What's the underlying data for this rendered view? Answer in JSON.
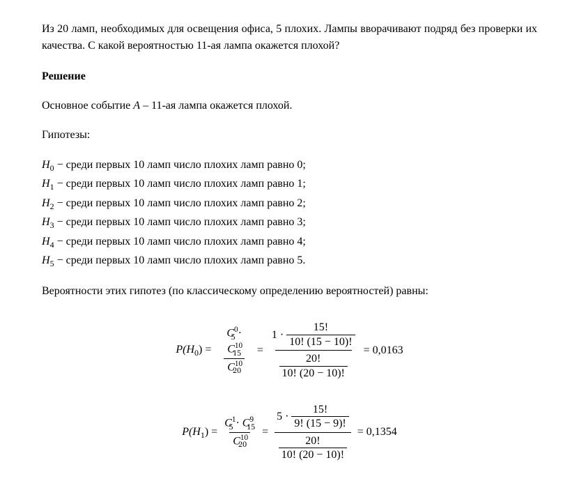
{
  "text_color": "#000000",
  "background_color": "#ffffff",
  "font_family": "Times New Roman",
  "problem": "Из 20 ламп, необходимых для освещения офиса, 5 плохих. Лампы вворачивают подряд без проверки их качества. С какой вероятностью 11-ая лампа окажется плохой?",
  "solution_heading": "Решение",
  "main_event_prefix": "Основное событие ",
  "main_event_var": "A",
  "main_event_suffix": " – 11-ая лампа окажется плохой.",
  "hypotheses_label": "Гипотезы:",
  "hypotheses": [
    {
      "var": "H",
      "idx": "0",
      "text": " − среди первых 10 ламп число плохих ламп равно 0;"
    },
    {
      "var": "H",
      "idx": "1",
      "text": " − среди первых 10 ламп число плохих ламп равно 1;"
    },
    {
      "var": "H",
      "idx": "2",
      "text": " − среди первых 10 ламп число плохих ламп равно 2;"
    },
    {
      "var": "H",
      "idx": "3",
      "text": " − среди первых 10 ламп число плохих ламп равно 3;"
    },
    {
      "var": "H",
      "idx": "4",
      "text": " − среди первых 10 ламп число плохих ламп равно 4;"
    },
    {
      "var": "H",
      "idx": "5",
      "text": " − среди первых 10 ламп число плохих ламп равно 5."
    }
  ],
  "prob_intro": "Вероятности этих гипотез (по классическому определению вероятностей) равны:",
  "formulas": {
    "f1": {
      "lhs_var": "P(H",
      "lhs_idx": "0",
      "lhs_close": ") =",
      "c1_base": "C",
      "c1_sup": "0",
      "c1_sub": "5",
      "dot": "·",
      "c2_base": "C",
      "c2_sup": "10",
      "c2_sub": "15",
      "cd_base": "C",
      "cd_sup": "10",
      "cd_sub": "20",
      "eq1": "=",
      "coef": "1 ·",
      "nf1_num": "15!",
      "nf1_den": "10! (15 − 10)!",
      "nf2_num": "20!",
      "nf2_den": "10! (20 − 10)!",
      "eq2": "= 0,0163"
    },
    "f2": {
      "lhs_var": "P(H",
      "lhs_idx": "1",
      "lhs_close": ") =",
      "c1_base": "C",
      "c1_sup": "1",
      "c1_sub": "5",
      "dot": "·",
      "c2_base": "C",
      "c2_sup": "9",
      "c2_sub": "15",
      "cd_base": "C",
      "cd_sup": "10",
      "cd_sub": "20",
      "eq1": "=",
      "coef": "5 ·",
      "nf1_num": "15!",
      "nf1_den": "9! (15 − 9)!",
      "nf2_num": "20!",
      "nf2_den": "10! (20 − 10)!",
      "eq2": "= 0,1354"
    }
  }
}
